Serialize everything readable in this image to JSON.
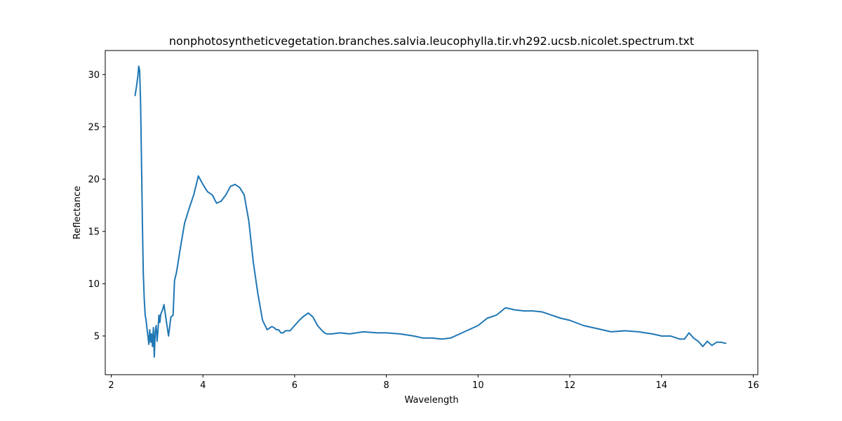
{
  "chart_data": {
    "type": "line",
    "title": "nonphotosyntheticvegetation.branches.salvia.leucophylla.tir.vh292.ucsb.nicolet.spectrum.txt",
    "xlabel": "Wavelength",
    "ylabel": "Reflectance",
    "xlim": [
      1.87,
      16.1
    ],
    "ylim": [
      1.3,
      32.3
    ],
    "xticks": [
      2,
      4,
      6,
      8,
      10,
      12,
      14,
      16
    ],
    "yticks": [
      5,
      10,
      15,
      20,
      25,
      30
    ],
    "grid": false,
    "legend": "none",
    "series": [
      {
        "color": "#1f77b4",
        "x": [
          2.52,
          2.55,
          2.58,
          2.6,
          2.62,
          2.64,
          2.66,
          2.68,
          2.7,
          2.72,
          2.74,
          2.76,
          2.78,
          2.8,
          2.82,
          2.84,
          2.86,
          2.88,
          2.9,
          2.92,
          2.94,
          2.96,
          2.98,
          3.0,
          3.02,
          3.04,
          3.06,
          3.08,
          3.1,
          3.12,
          3.15,
          3.2,
          3.25,
          3.3,
          3.35,
          3.38,
          3.42,
          3.45,
          3.5,
          3.55,
          3.6,
          3.7,
          3.8,
          3.9,
          4.0,
          4.1,
          4.2,
          4.23,
          4.26,
          4.3,
          4.4,
          4.5,
          4.6,
          4.7,
          4.8,
          4.9,
          5.0,
          5.1,
          5.2,
          5.3,
          5.4,
          5.5,
          5.55,
          5.6,
          5.65,
          5.7,
          5.75,
          5.8,
          5.9,
          6.0,
          6.1,
          6.2,
          6.3,
          6.4,
          6.5,
          6.6,
          6.65,
          6.7,
          6.75,
          6.8,
          7.0,
          7.2,
          7.5,
          7.8,
          8.0,
          8.3,
          8.6,
          8.8,
          9.0,
          9.2,
          9.4,
          9.6,
          9.8,
          10.0,
          10.2,
          10.4,
          10.6,
          10.8,
          11.0,
          11.2,
          11.4,
          11.6,
          11.8,
          12.0,
          12.3,
          12.6,
          12.9,
          13.2,
          13.5,
          13.8,
          14.0,
          14.2,
          14.4,
          14.5,
          14.6,
          14.7,
          14.8,
          14.9,
          15.0,
          15.1,
          15.2,
          15.3,
          15.4
        ],
        "y": [
          28.0,
          28.8,
          29.8,
          30.8,
          30.4,
          27.5,
          22.0,
          16.0,
          11.0,
          8.5,
          7.0,
          6.5,
          5.7,
          5.0,
          4.2,
          5.6,
          4.4,
          5.2,
          4.0,
          5.8,
          3.0,
          5.4,
          6.0,
          4.5,
          5.6,
          7.0,
          6.3,
          7.1,
          7.3,
          7.5,
          8.0,
          6.5,
          5.0,
          6.8,
          7.0,
          10.3,
          11.0,
          11.8,
          13.2,
          14.5,
          15.8,
          17.2,
          18.5,
          20.3,
          19.5,
          18.8,
          18.5,
          18.3,
          18.0,
          17.7,
          17.9,
          18.5,
          19.3,
          19.5,
          19.2,
          18.5,
          16.0,
          12.0,
          9.0,
          6.5,
          5.6,
          5.9,
          5.8,
          5.6,
          5.6,
          5.3,
          5.3,
          5.5,
          5.5,
          6.0,
          6.5,
          6.9,
          7.2,
          6.8,
          6.0,
          5.5,
          5.3,
          5.2,
          5.2,
          5.2,
          5.3,
          5.2,
          5.4,
          5.3,
          5.3,
          5.2,
          5.0,
          4.8,
          4.8,
          4.7,
          4.8,
          5.2,
          5.6,
          6.0,
          6.7,
          7.0,
          7.7,
          7.5,
          7.4,
          7.4,
          7.3,
          7.0,
          6.7,
          6.5,
          6.0,
          5.7,
          5.4,
          5.5,
          5.4,
          5.2,
          5.0,
          5.0,
          4.7,
          4.7,
          5.3,
          4.8,
          4.5,
          4.0,
          4.5,
          4.1,
          4.4,
          4.4,
          4.3
        ]
      }
    ]
  }
}
